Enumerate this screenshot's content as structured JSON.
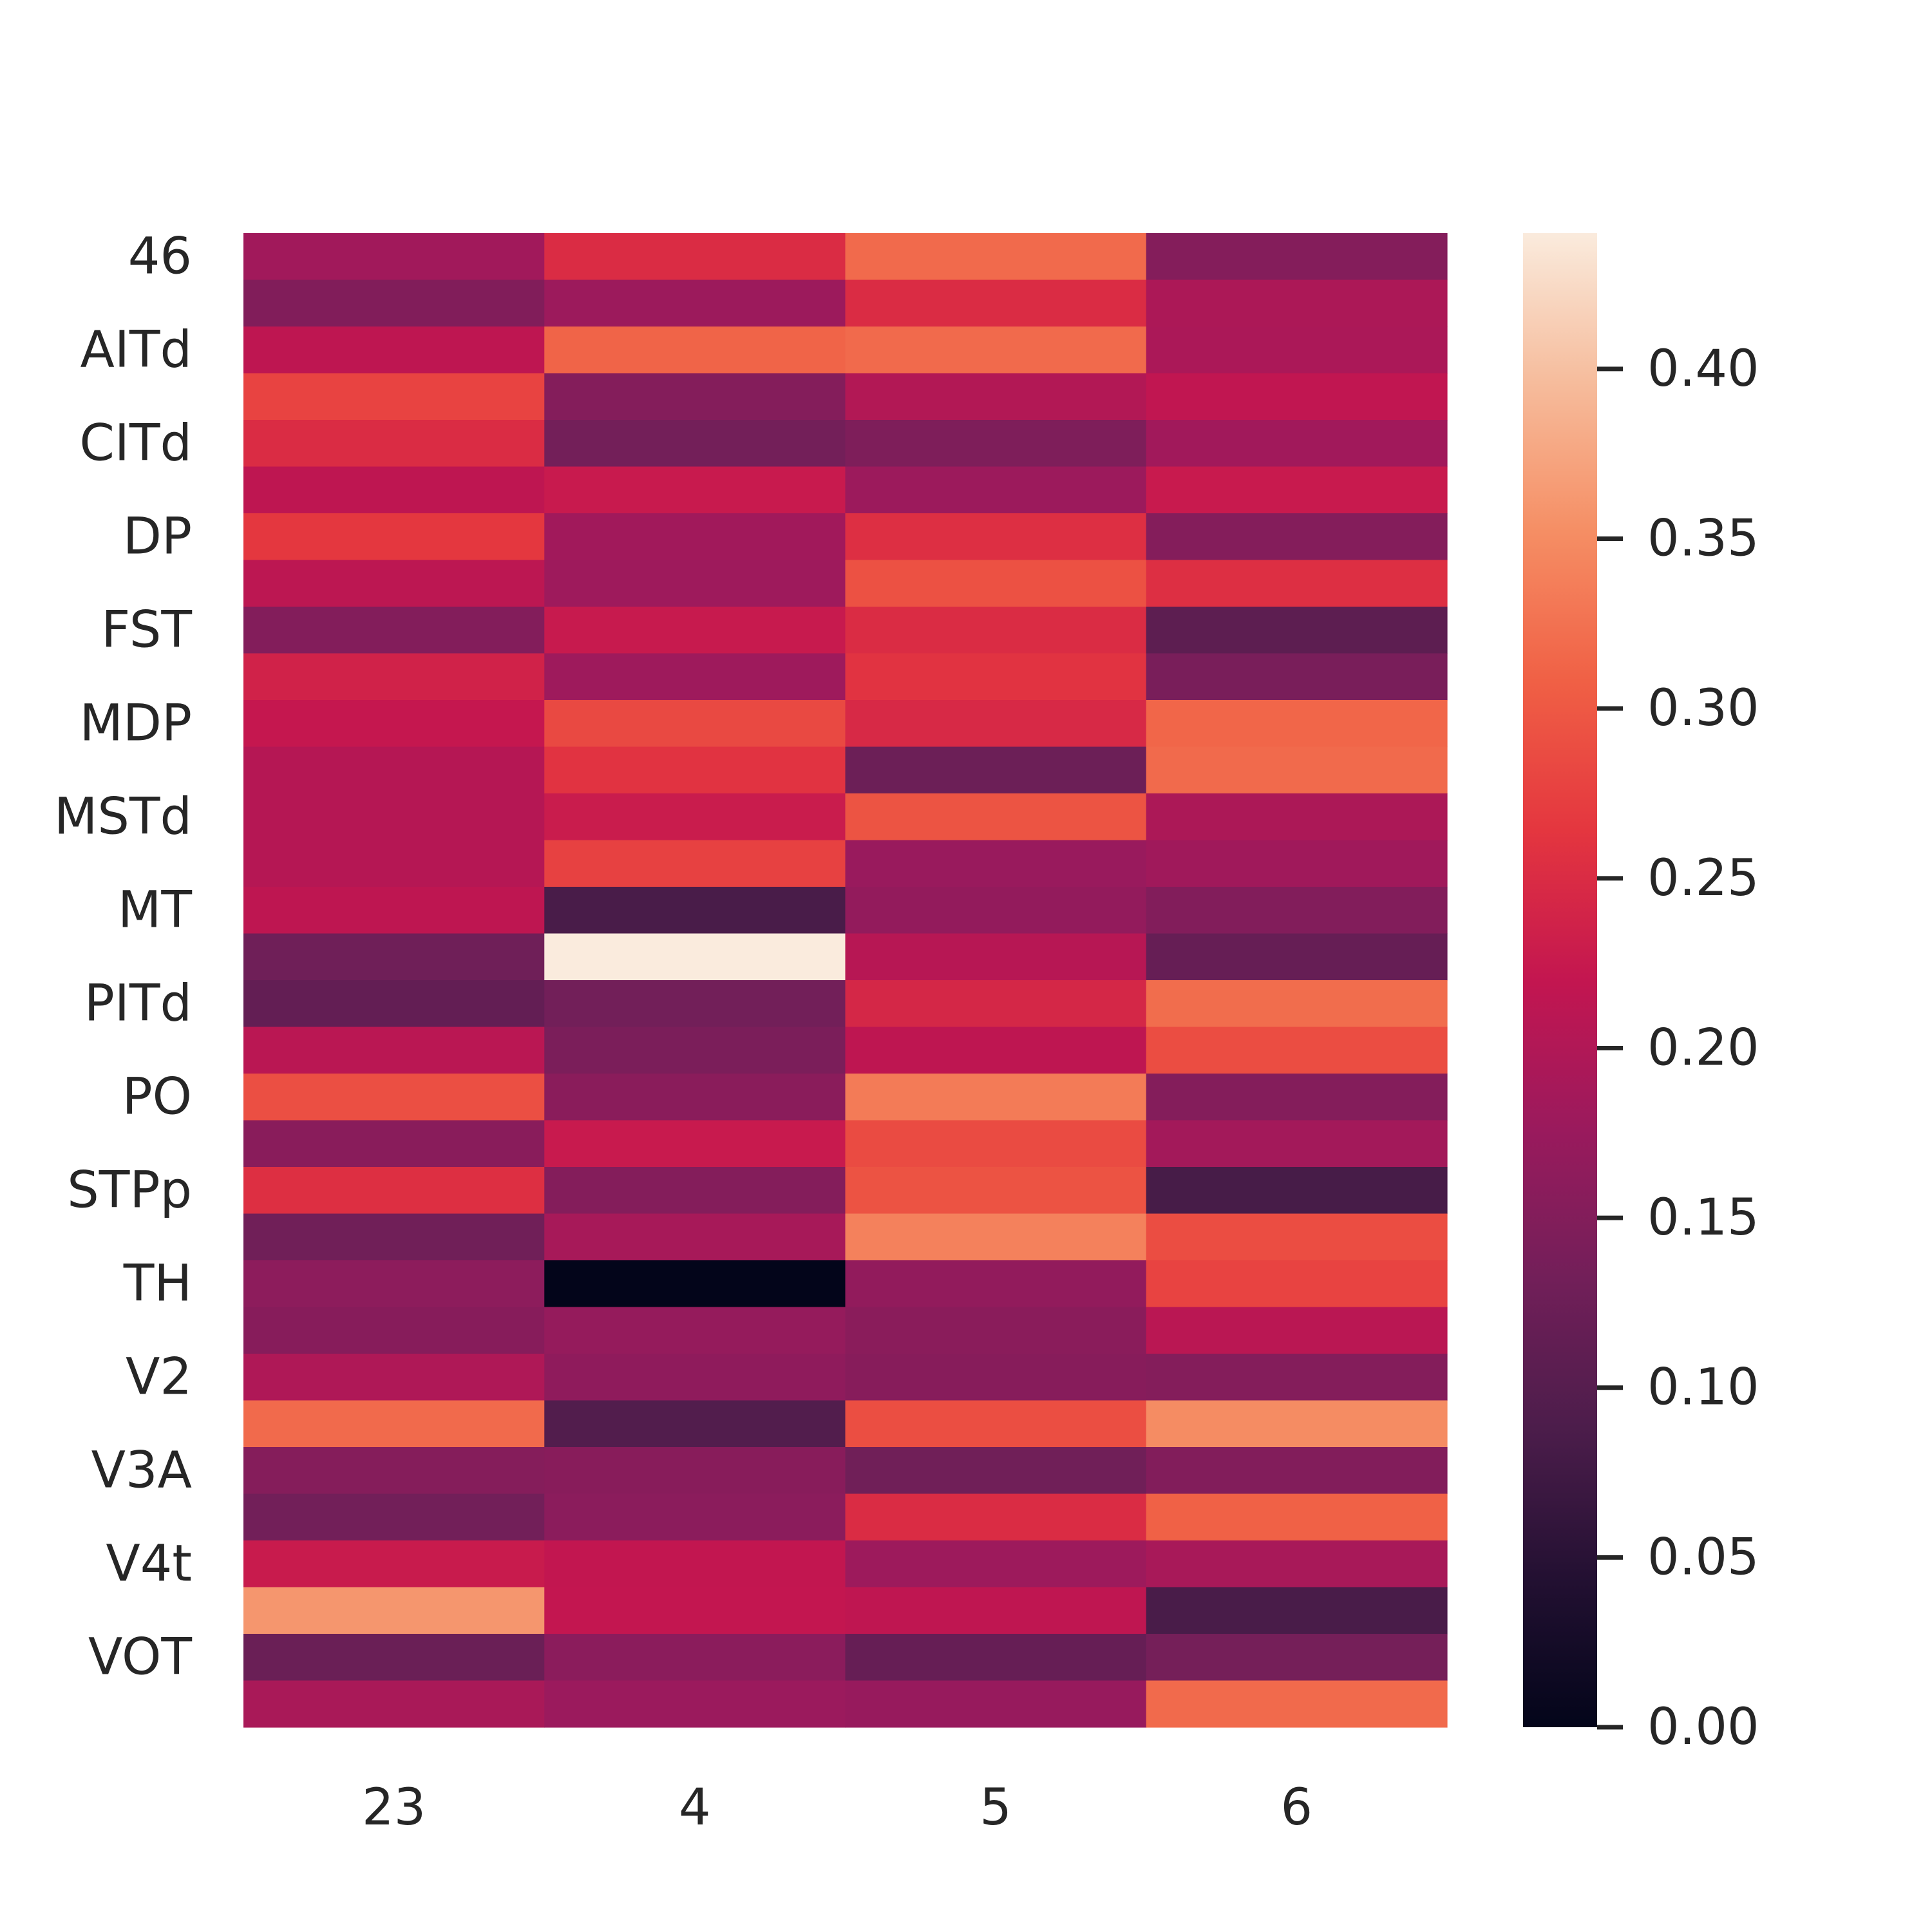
{
  "chart_data": {
    "type": "heatmap",
    "title": "",
    "xlabel": "",
    "ylabel": "",
    "columns": [
      "23",
      "4",
      "5",
      "6"
    ],
    "row_tick_labels": [
      "46",
      "AITd",
      "CITd",
      "DP",
      "FST",
      "MDP",
      "MSTd",
      "MT",
      "PITd",
      "PO",
      "STPp",
      "TH",
      "V2",
      "V3A",
      "V4t",
      "VOT"
    ],
    "values": [
      [
        0.183,
        0.25,
        0.318,
        0.152
      ],
      [
        0.148,
        0.178,
        0.25,
        0.195
      ],
      [
        0.215,
        0.312,
        0.318,
        0.194
      ],
      [
        0.278,
        0.152,
        0.202,
        0.218
      ],
      [
        0.25,
        0.133,
        0.145,
        0.184
      ],
      [
        0.215,
        0.226,
        0.178,
        0.226
      ],
      [
        0.265,
        0.183,
        0.254,
        0.152
      ],
      [
        0.212,
        0.18,
        0.292,
        0.254
      ],
      [
        0.151,
        0.225,
        0.25,
        0.108
      ],
      [
        0.237,
        0.18,
        0.26,
        0.14
      ],
      [
        0.222,
        0.284,
        0.246,
        0.314
      ],
      [
        0.205,
        0.26,
        0.125,
        0.318
      ],
      [
        0.205,
        0.228,
        0.295,
        0.195
      ],
      [
        0.205,
        0.275,
        0.175,
        0.182
      ],
      [
        0.215,
        0.085,
        0.168,
        0.15
      ],
      [
        0.128,
        0.44,
        0.207,
        0.118
      ],
      [
        0.115,
        0.132,
        0.243,
        0.32
      ],
      [
        0.21,
        0.142,
        0.215,
        0.288
      ],
      [
        0.29,
        0.158,
        0.334,
        0.152
      ],
      [
        0.157,
        0.226,
        0.286,
        0.186
      ],
      [
        0.255,
        0.152,
        0.294,
        0.083
      ],
      [
        0.13,
        0.19,
        0.34,
        0.288
      ],
      [
        0.162,
        0.0,
        0.167,
        0.278
      ],
      [
        0.155,
        0.17,
        0.158,
        0.21
      ],
      [
        0.198,
        0.164,
        0.155,
        0.152
      ],
      [
        0.318,
        0.095,
        0.289,
        0.35
      ],
      [
        0.153,
        0.156,
        0.13,
        0.15
      ],
      [
        0.132,
        0.16,
        0.25,
        0.309
      ],
      [
        0.227,
        0.219,
        0.179,
        0.191
      ],
      [
        0.36,
        0.22,
        0.216,
        0.085
      ],
      [
        0.123,
        0.16,
        0.118,
        0.135
      ],
      [
        0.192,
        0.177,
        0.173,
        0.318
      ]
    ],
    "vmin": 0.0,
    "vmax": 0.44,
    "colorbar": {
      "ticks": [
        "0.00",
        "0.05",
        "0.10",
        "0.15",
        "0.20",
        "0.25",
        "0.30",
        "0.35",
        "0.40"
      ],
      "tick_values": [
        0.0,
        0.05,
        0.1,
        0.15,
        0.2,
        0.25,
        0.3,
        0.35,
        0.4
      ],
      "colormap": "rocket"
    },
    "grid": false
  }
}
